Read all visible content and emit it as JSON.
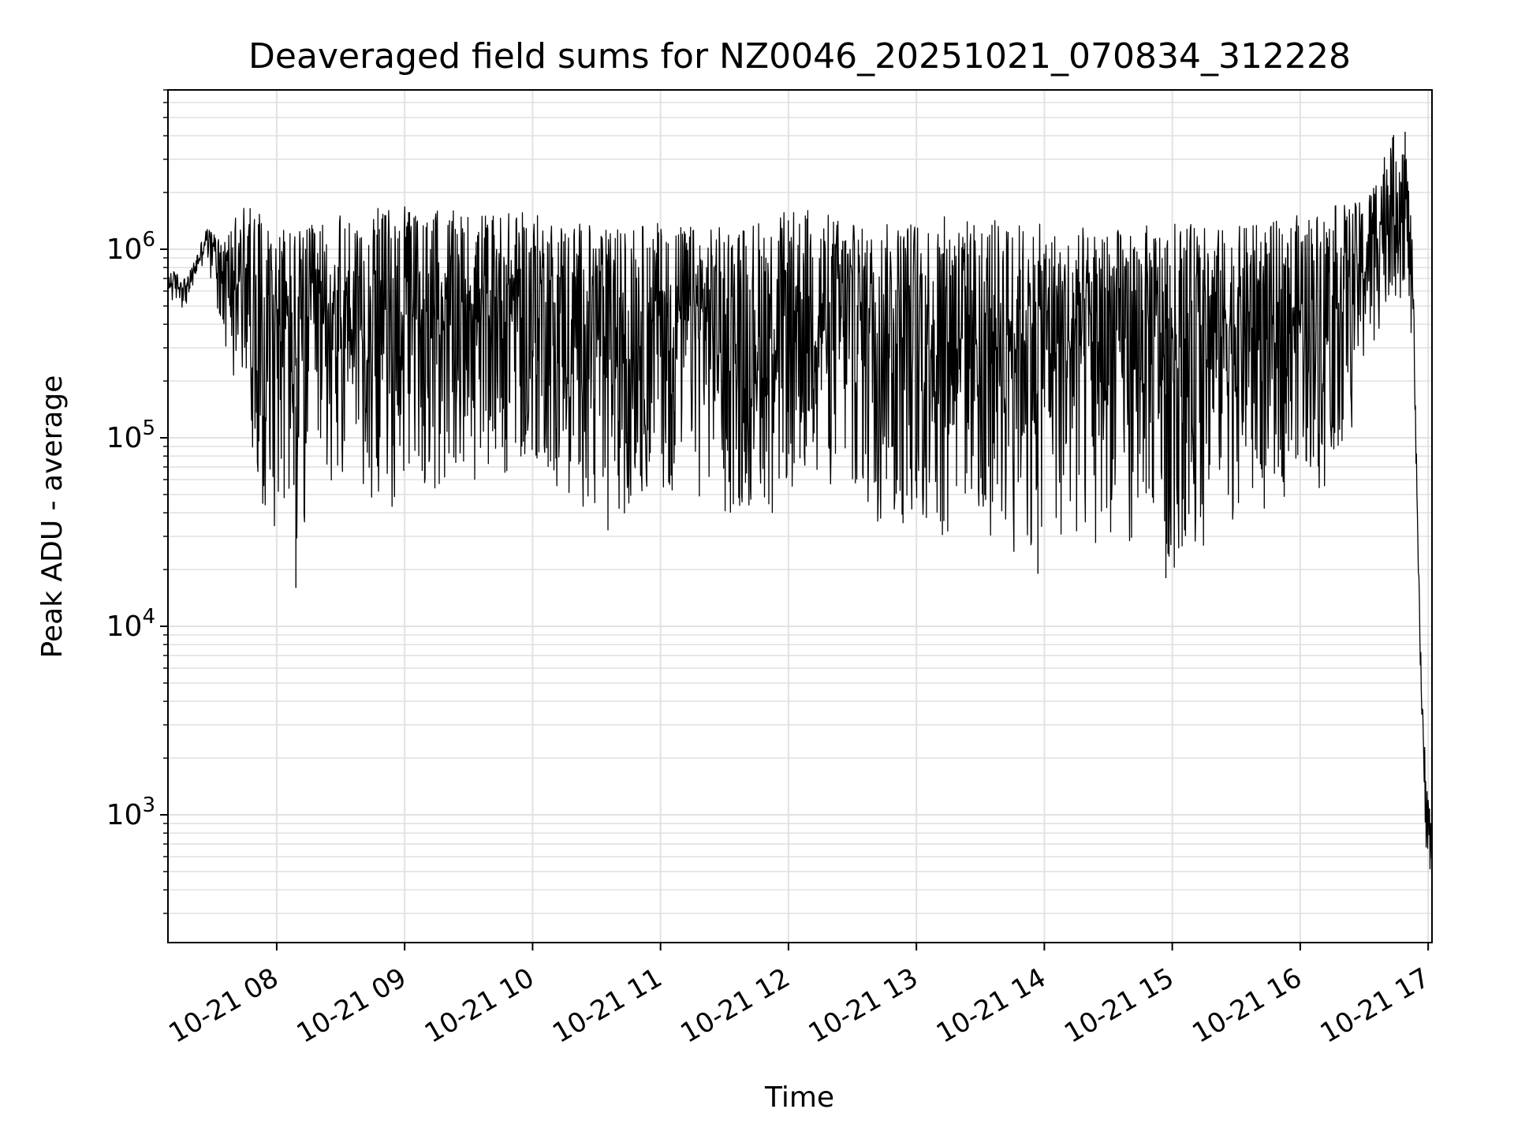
{
  "chart_data": {
    "type": "line",
    "title": "Deaveraged field sums for NZ0046_20251021_070834_312228",
    "xlabel": "Time",
    "ylabel": "Peak ADU - average",
    "yscale": "log",
    "ylim": [
      210,
      7000000
    ],
    "xlim_hours": [
      7.15,
      17.03
    ],
    "grid": true,
    "x_ticks": [
      {
        "label": "10-21 08",
        "hour": 8
      },
      {
        "label": "10-21 09",
        "hour": 9
      },
      {
        "label": "10-21 10",
        "hour": 10
      },
      {
        "label": "10-21 11",
        "hour": 11
      },
      {
        "label": "10-21 12",
        "hour": 12
      },
      {
        "label": "10-21 13",
        "hour": 13
      },
      {
        "label": "10-21 14",
        "hour": 14
      },
      {
        "label": "10-21 15",
        "hour": 15
      },
      {
        "label": "10-21 16",
        "hour": 16
      },
      {
        "label": "10-21 17",
        "hour": 17
      }
    ],
    "y_ticks": [
      {
        "base": "10",
        "exp": "3",
        "value": 1000
      },
      {
        "base": "10",
        "exp": "4",
        "value": 10000
      },
      {
        "base": "10",
        "exp": "5",
        "value": 100000
      },
      {
        "base": "10",
        "exp": "6",
        "value": 1000000
      }
    ],
    "series": [
      {
        "name": "deaveraged field sum",
        "color": "#000000",
        "envelope_upper": [
          [
            7.15,
            800000
          ],
          [
            7.3,
            700000
          ],
          [
            7.45,
            1300000
          ],
          [
            7.6,
            1200000
          ],
          [
            7.75,
            1800000
          ],
          [
            7.9,
            1500000
          ],
          [
            8.2,
            1300000
          ],
          [
            8.6,
            1600000
          ],
          [
            9.0,
            1700000
          ],
          [
            9.4,
            1600000
          ],
          [
            9.8,
            1600000
          ],
          [
            10.2,
            1500000
          ],
          [
            10.6,
            1300000
          ],
          [
            11.0,
            1400000
          ],
          [
            11.4,
            1300000
          ],
          [
            11.8,
            1500000
          ],
          [
            12.2,
            1700000
          ],
          [
            12.6,
            1300000
          ],
          [
            13.0,
            1500000
          ],
          [
            13.4,
            1500000
          ],
          [
            13.8,
            1400000
          ],
          [
            14.2,
            1300000
          ],
          [
            14.6,
            1300000
          ],
          [
            15.0,
            1400000
          ],
          [
            15.4,
            1300000
          ],
          [
            15.8,
            1400000
          ],
          [
            16.2,
            1700000
          ],
          [
            16.5,
            1800000
          ],
          [
            16.7,
            4000000
          ],
          [
            16.82,
            4200000
          ],
          [
            16.88,
            1000000
          ],
          [
            16.92,
            30000
          ],
          [
            16.96,
            3300
          ],
          [
            17.0,
            1500
          ],
          [
            17.03,
            700
          ]
        ],
        "envelope_lower": [
          [
            7.15,
            500000
          ],
          [
            7.3,
            480000
          ],
          [
            7.45,
            900000
          ],
          [
            7.6,
            300000
          ],
          [
            7.75,
            120000
          ],
          [
            7.9,
            40000
          ],
          [
            8.05,
            22000
          ],
          [
            8.15,
            16000
          ],
          [
            8.3,
            60000
          ],
          [
            8.6,
            50000
          ],
          [
            9.0,
            40000
          ],
          [
            9.4,
            60000
          ],
          [
            9.8,
            55000
          ],
          [
            10.2,
            50000
          ],
          [
            10.6,
            32000
          ],
          [
            11.0,
            45000
          ],
          [
            11.4,
            40000
          ],
          [
            11.8,
            35000
          ],
          [
            12.2,
            40000
          ],
          [
            12.6,
            35000
          ],
          [
            13.0,
            30000
          ],
          [
            13.4,
            30000
          ],
          [
            13.8,
            22000
          ],
          [
            14.2,
            25000
          ],
          [
            14.6,
            28000
          ],
          [
            15.0,
            20000
          ],
          [
            15.4,
            30000
          ],
          [
            15.8,
            45000
          ],
          [
            16.2,
            50000
          ],
          [
            16.5,
            150000
          ],
          [
            16.7,
            500000
          ],
          [
            16.82,
            500000
          ],
          [
            16.88,
            300000
          ],
          [
            16.92,
            25000
          ],
          [
            16.96,
            800
          ],
          [
            17.0,
            500
          ],
          [
            17.03,
            400
          ]
        ],
        "notable_points": [
          {
            "hour": 8.15,
            "value": 16000
          },
          {
            "hour": 13.95,
            "value": 19000
          },
          {
            "hour": 14.95,
            "value": 18000
          },
          {
            "hour": 16.82,
            "value": 4200000
          },
          {
            "hour": 17.03,
            "value": 400
          }
        ]
      }
    ]
  }
}
